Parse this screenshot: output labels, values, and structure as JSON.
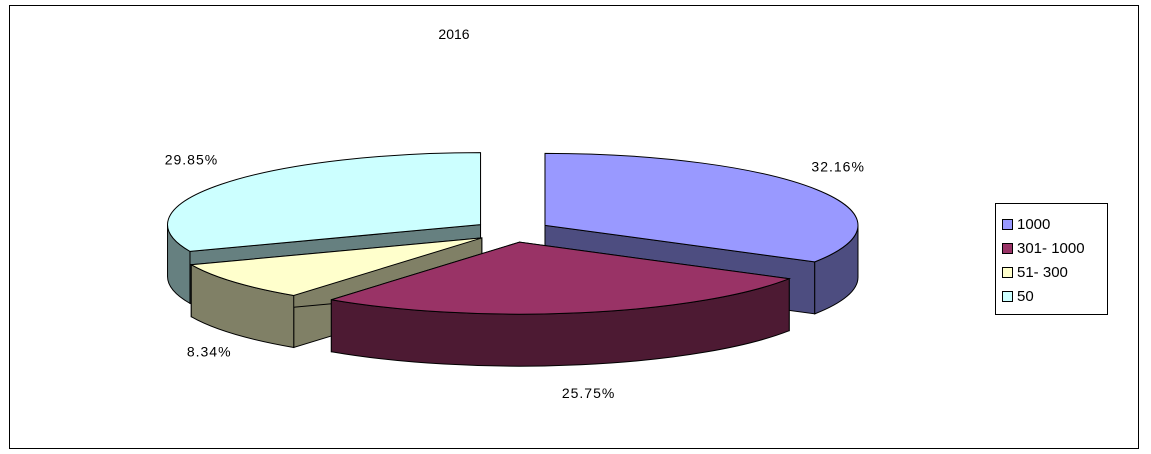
{
  "chart_data": {
    "type": "pie",
    "title": "2016",
    "legend_position": "right",
    "exploded": true,
    "three_d": true,
    "categories": [
      "1000",
      "301-1000",
      "51-300",
      "50"
    ],
    "legend_labels": [
      "1000",
      "301- 1000",
      "51- 300",
      "50"
    ],
    "values": [
      32.16,
      25.75,
      8.34,
      29.85
    ],
    "value_labels": [
      "32.16%",
      "25.75%",
      "8.34%",
      "29.85%"
    ],
    "colors": [
      "#9999ff",
      "#993366",
      "#ffffcc",
      "#ccffff"
    ]
  }
}
